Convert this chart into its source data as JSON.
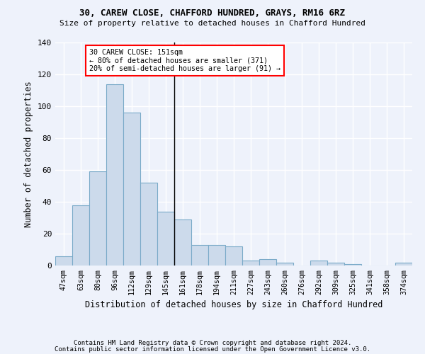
{
  "title": "30, CAREW CLOSE, CHAFFORD HUNDRED, GRAYS, RM16 6RZ",
  "subtitle": "Size of property relative to detached houses in Chafford Hundred",
  "xlabel": "Distribution of detached houses by size in Chafford Hundred",
  "ylabel": "Number of detached properties",
  "bar_color": "#ccdaeb",
  "bar_edge_color": "#7aaac8",
  "categories": [
    "47sqm",
    "63sqm",
    "80sqm",
    "96sqm",
    "112sqm",
    "129sqm",
    "145sqm",
    "161sqm",
    "178sqm",
    "194sqm",
    "211sqm",
    "227sqm",
    "243sqm",
    "260sqm",
    "276sqm",
    "292sqm",
    "309sqm",
    "325sqm",
    "341sqm",
    "358sqm",
    "374sqm"
  ],
  "values": [
    6,
    38,
    59,
    114,
    96,
    52,
    34,
    29,
    13,
    13,
    12,
    3,
    4,
    2,
    0,
    3,
    2,
    1,
    0,
    0,
    2
  ],
  "ylim": [
    0,
    140
  ],
  "yticks": [
    0,
    20,
    40,
    60,
    80,
    100,
    120,
    140
  ],
  "property_line_x": 7,
  "annotation_text": "30 CAREW CLOSE: 151sqm\n← 80% of detached houses are smaller (371)\n20% of semi-detached houses are larger (91) →",
  "annotation_box_color": "white",
  "annotation_box_edge_color": "red",
  "background_color": "#eef2fb",
  "grid_color": "#ffffff",
  "footer_line1": "Contains HM Land Registry data © Crown copyright and database right 2024.",
  "footer_line2": "Contains public sector information licensed under the Open Government Licence v3.0."
}
